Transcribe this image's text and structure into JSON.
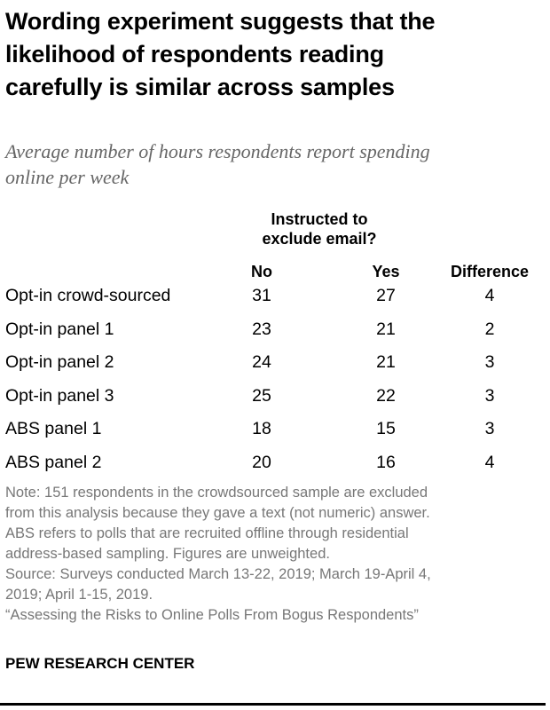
{
  "title": [
    "Wording experiment suggests that the",
    "likelihood of respondents reading",
    "carefully is similar across samples"
  ],
  "subtitle": [
    "Average number of hours respondents report spending",
    "online per week"
  ],
  "chart_data": {
    "type": "table",
    "group_header": [
      "Instructed to",
      "exclude email?"
    ],
    "columns": [
      "No",
      "Yes",
      "Difference"
    ],
    "rows": [
      {
        "label": "Opt-in crowd-sourced",
        "values": [
          31,
          27,
          4
        ]
      },
      {
        "label": "Opt-in panel 1",
        "values": [
          23,
          21,
          2
        ]
      },
      {
        "label": "Opt-in panel 2",
        "values": [
          24,
          21,
          3
        ]
      },
      {
        "label": "Opt-in panel 3",
        "values": [
          25,
          22,
          3
        ]
      },
      {
        "label": "ABS panel 1",
        "values": [
          18,
          15,
          3
        ]
      },
      {
        "label": "ABS panel 2",
        "values": [
          20,
          16,
          4
        ]
      }
    ]
  },
  "notes": [
    "Note: 151 respondents in the crowdsourced sample are excluded",
    "from this analysis because they gave a text (not numeric) answer.",
    "ABS refers to polls that are recruited offline through residential",
    "address-based sampling. Figures are unweighted.",
    "Source: Surveys conducted March 13-22, 2019; March 19-April 4,",
    "2019; April 1-15, 2019.",
    "“Assessing the Risks to Online Polls From Bogus Respondents”"
  ],
  "logo": "PEW RESEARCH CENTER"
}
